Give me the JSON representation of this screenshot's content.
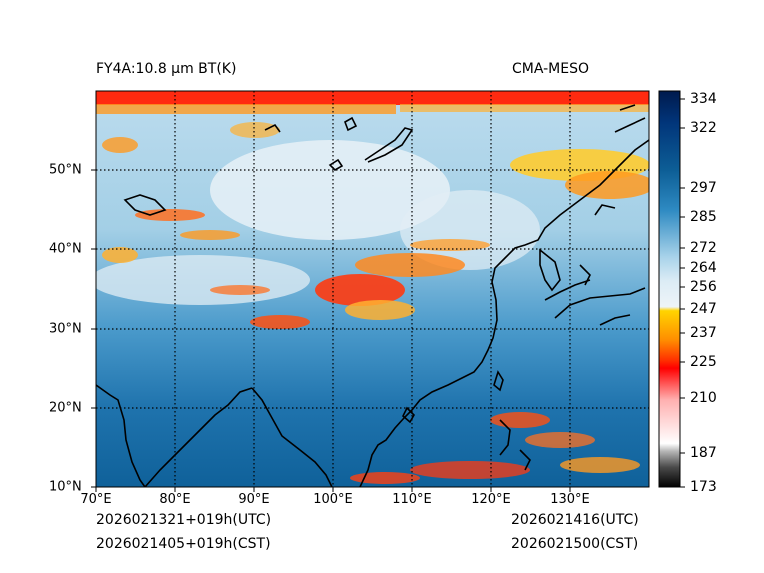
{
  "header": {
    "title_left": "FY4A:10.8 µm BT(K)",
    "title_right": "CMA-MESO"
  },
  "footer": {
    "init_utc": "2026021321+019h(UTC)",
    "init_cst": "2026021405+019h(CST)",
    "valid_utc": "2026021416(UTC)",
    "valid_cst": "2026021500(CST)"
  },
  "map": {
    "lon_range": [
      70,
      140
    ],
    "lat_range": [
      10,
      60
    ],
    "lon_ticks": [
      "70°E",
      "80°E",
      "90°E",
      "100°E",
      "110°E",
      "120°E",
      "130°E"
    ],
    "lat_ticks": [
      "10°N",
      "20°N",
      "30°N",
      "40°N",
      "50°N"
    ],
    "gridline_style": "dotted"
  },
  "colorbar": {
    "range": [
      173,
      337
    ],
    "ticks": [
      "334",
      "322",
      "297",
      "285",
      "272",
      "264",
      "256",
      "247",
      "237",
      "225",
      "210",
      "187",
      "173"
    ],
    "tick_values": [
      334,
      322,
      297,
      285,
      272,
      264,
      256,
      247,
      237,
      225,
      210,
      187,
      173
    ],
    "colors": {
      "cold_black": "#000000",
      "grey": "#bdbdbd",
      "red": "#ff0000",
      "orange": "#ff8c00",
      "yellow": "#ffd400",
      "white": "#f4f8fb",
      "light_blue": "#a9d3ea",
      "mid_blue": "#2e8ac2",
      "ocean_blue": "#0d5e96",
      "dark_navy": "#001a4d"
    }
  }
}
